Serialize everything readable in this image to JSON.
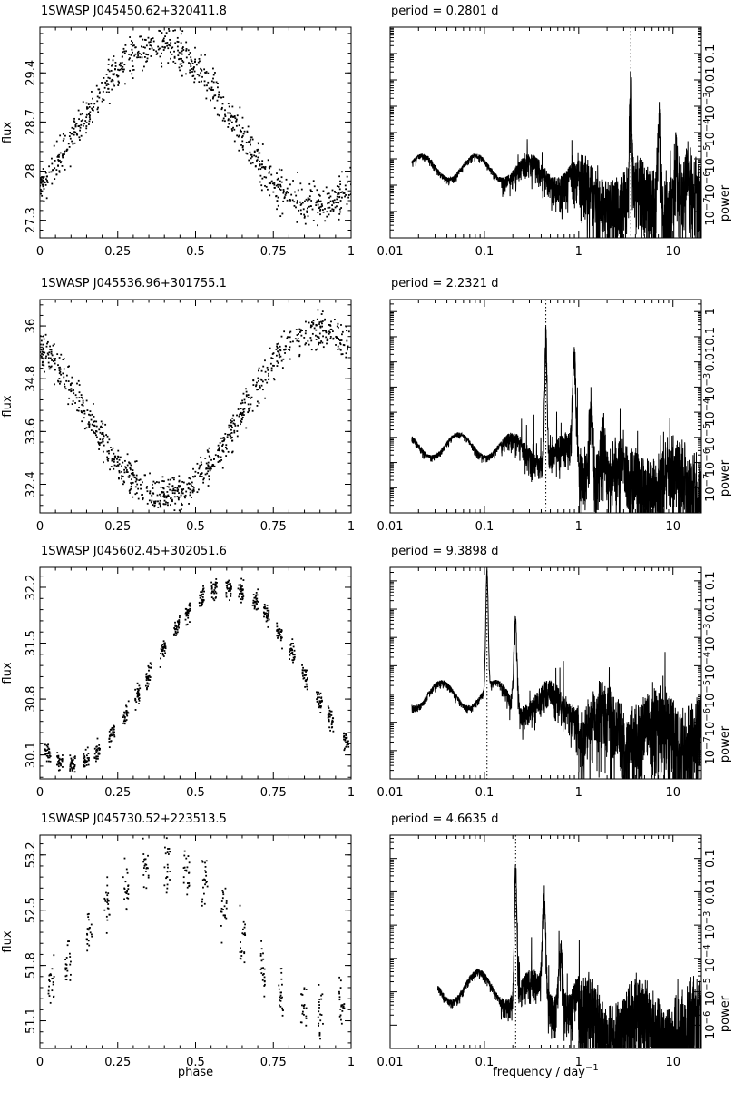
{
  "chart_data": [
    {
      "type": "scatter",
      "title": "1SWASP J045450.62+320411.8",
      "xlabel": "",
      "ylabel": "flux",
      "xlim": [
        0,
        1
      ],
      "ylim": [
        27.05,
        30.05
      ],
      "xticks": [
        0,
        0.25,
        0.5,
        0.75,
        1
      ],
      "xtick_labels": [
        "0",
        "0.25",
        "0.5",
        "0.75",
        "1"
      ],
      "yticks": [
        27.3,
        28,
        28.7,
        29.4
      ],
      "ytick_labels": [
        "27.3",
        "28",
        "28.7",
        "29.4"
      ],
      "shape": "hump",
      "peak_phase": 0.38,
      "min_flux": 27.5,
      "max_flux": 29.8,
      "scatter": 0.28,
      "n_points": 800
    },
    {
      "type": "line",
      "title": "period =    0.2801  d",
      "xlabel": "",
      "ylabel": "power",
      "xscale": "log",
      "yscale": "log",
      "xlim": [
        0.01,
        20
      ],
      "ylim": [
        1e-08,
        1
      ],
      "xtick_labels": [
        "0.01",
        "0.1",
        "1",
        "10"
      ],
      "ytick_labels": [
        "10^-7",
        "10^-6",
        "10^-5",
        "10^-4",
        "10^-3",
        "0.01",
        "0.1"
      ],
      "period_days": 0.2801,
      "peak_frequency": 3.57,
      "peak_power": 0.1,
      "noise_level": 1e-05,
      "n_harmonic_peaks": 5
    },
    {
      "type": "scatter",
      "title": "1SWASP J045536.96+301755.1",
      "xlabel": "",
      "ylabel": "flux",
      "xlim": [
        0,
        1
      ],
      "ylim": [
        31.75,
        36.6
      ],
      "xticks": [
        0,
        0.25,
        0.5,
        0.75,
        1
      ],
      "xtick_labels": [
        "0",
        "0.25",
        "0.5",
        "0.75",
        "1"
      ],
      "yticks": [
        32.4,
        33.6,
        34.8,
        36
      ],
      "ytick_labels": [
        "32.4",
        "33.6",
        "34.8",
        "36"
      ],
      "shape": "dip",
      "min_phase": 0.4,
      "min_flux": 32.1,
      "max_flux": 35.9,
      "scatter": 0.4,
      "n_points": 850
    },
    {
      "type": "line",
      "title": "period =    2.2321  d",
      "xlabel": "",
      "ylabel": "power",
      "xscale": "log",
      "yscale": "log",
      "xlim": [
        0.01,
        20
      ],
      "ylim": [
        1e-08,
        3
      ],
      "xtick_labels": [
        "0.01",
        "0.1",
        "1",
        "10"
      ],
      "ytick_labels": [
        "10^-7",
        "10^-6",
        "10^-5",
        "10^-4",
        "10^-3",
        "0.010.1",
        "1"
      ],
      "period_days": 2.2321,
      "peak_frequency": 0.448,
      "peak_power": 1.0,
      "noise_level": 1e-05,
      "n_harmonic_peaks": 4
    },
    {
      "type": "scatter",
      "title": "1SWASP J045602.45+302051.6",
      "xlabel": "",
      "ylabel": "flux",
      "xlim": [
        0,
        1
      ],
      "ylim": [
        29.8,
        32.45
      ],
      "xticks": [
        0,
        0.25,
        0.5,
        0.75,
        1
      ],
      "xtick_labels": [
        "0",
        "0.25",
        "0.5",
        "0.75",
        "1"
      ],
      "yticks": [
        30.1,
        30.8,
        31.5,
        32.2
      ],
      "ytick_labels": [
        "30.1",
        "30.8",
        "31.5",
        "32.2"
      ],
      "shape": "clumps",
      "peak_phase": 0.6,
      "min_flux": 30.0,
      "max_flux": 32.2,
      "scatter": 0.12,
      "n_clumps": 24,
      "n_points": 720
    },
    {
      "type": "line",
      "title": "period =    9.3898  d",
      "xlabel": "",
      "ylabel": "power",
      "xscale": "log",
      "yscale": "log",
      "xlim": [
        0.01,
        20
      ],
      "ylim": [
        1e-08,
        0.3
      ],
      "xtick_labels": [
        "0.01",
        "0.1",
        "1",
        "10"
      ],
      "ytick_labels": [
        "10^-7",
        "10^-6",
        "10^-5",
        "10^-4",
        "10^-3",
        "0.01",
        "0.1"
      ],
      "period_days": 9.3898,
      "peak_frequency": 0.1065,
      "peak_power": 0.3,
      "noise_level": 2e-05,
      "n_harmonic_peaks": 2
    },
    {
      "type": "scatter",
      "title": "1SWASP J045730.52+223513.5",
      "xlabel": "phase",
      "ylabel": "flux",
      "xlim": [
        0,
        1
      ],
      "ylim": [
        50.75,
        53.45
      ],
      "xticks": [
        0,
        0.25,
        0.5,
        0.75,
        1
      ],
      "xtick_labels": [
        "0",
        "0.25",
        "0.5",
        "0.75",
        "1"
      ],
      "yticks": [
        51.1,
        51.8,
        52.5,
        53.2
      ],
      "ytick_labels": [
        "51.1",
        "51.8",
        "52.5",
        "53.2"
      ],
      "shape": "clumps",
      "peak_phase": 0.4,
      "min_flux": 51.2,
      "max_flux": 53.1,
      "scatter": 0.35,
      "n_clumps": 16,
      "n_points": 330
    },
    {
      "type": "line",
      "title": "period =    4.6635  d",
      "xlabel": "frequency / day",
      "xlabel_superscript": "-1",
      "ylabel": "power",
      "xscale": "log",
      "yscale": "log",
      "xlim": [
        0.01,
        20
      ],
      "ylim": [
        2e-07,
        0.5
      ],
      "xtick_labels": [
        "0.01",
        "0.1",
        "1",
        "10"
      ],
      "ytick_labels": [
        "10^-6",
        "10^-5",
        "10^-4",
        "10^-3",
        "0.01",
        "0.1"
      ],
      "period_days": 4.6635,
      "peak_frequency": 0.2144,
      "peak_power": 0.35,
      "noise_level": 3e-05,
      "n_harmonic_peaks": 3
    }
  ]
}
